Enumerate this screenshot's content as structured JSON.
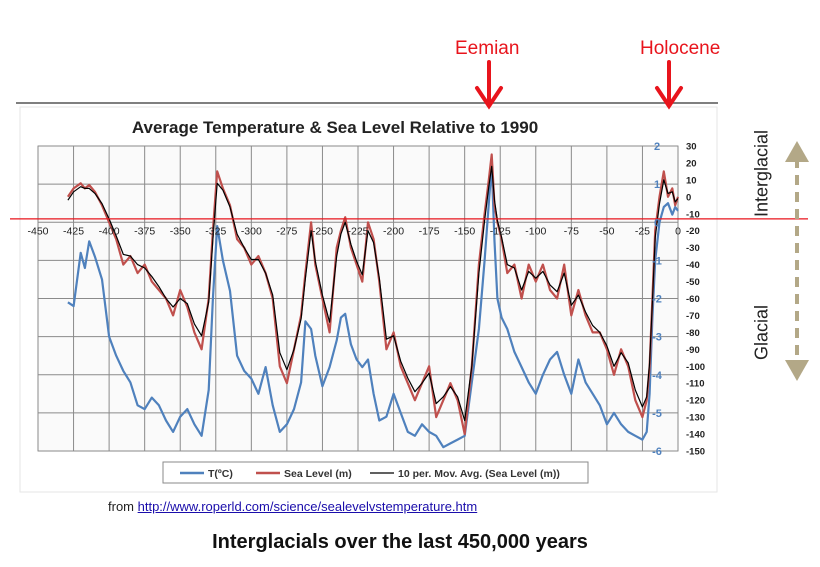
{
  "annotations": {
    "eemian": "Eemian",
    "holocene": "Holocene",
    "interglacial": "Interglacial",
    "glacial": "Glacial"
  },
  "source": {
    "prefix": "from",
    "url": "http://www.roperld.com/science/sealevelvstemperature.htm"
  },
  "caption": "Interglacials over the last 450,000 years",
  "colors": {
    "temperature": "#4f81bd",
    "sea_level": "#c0504d",
    "moving_avg": "#000000",
    "arrow": "#e8141c",
    "reference_line": "#e8141c",
    "side_arrow": "#b3a887"
  },
  "chart_data": {
    "type": "line",
    "title": "Average Temperature & Sea Level Relative to 1990",
    "x_ticks": [
      "-450",
      "-425",
      "-400",
      "-375",
      "-350",
      "-325",
      "-300",
      "-275",
      "-250",
      "-225",
      "-200",
      "-175",
      "-150",
      "-125",
      "-100",
      "-75",
      "-50",
      "-25",
      "0"
    ],
    "xlim": [
      -450,
      0
    ],
    "y_left_ticks": [
      "2",
      "1",
      "0",
      "-1",
      "-2",
      "-3",
      "-4",
      "-5",
      "-6"
    ],
    "y_left_lim": [
      -6,
      2
    ],
    "y_right_ticks": [
      "30",
      "20",
      "10",
      "0",
      "-10",
      "-20",
      "-30",
      "-40",
      "-50",
      "-60",
      "-70",
      "-80",
      "-90",
      "-100",
      "-110",
      "-120",
      "-130",
      "-140",
      "-150"
    ],
    "y_right_lim": [
      -150,
      30
    ],
    "grid": true,
    "legend_position": "bottom",
    "series": [
      {
        "name": "T(ºC)",
        "axis": "left",
        "x": [
          -429,
          -425,
          -420,
          -417,
          -414,
          -410,
          -405,
          -400,
          -395,
          -390,
          -385,
          -380,
          -375,
          -370,
          -365,
          -360,
          -355,
          -350,
          -345,
          -340,
          -335,
          -330,
          -327,
          -324,
          -320,
          -315,
          -310,
          -305,
          -300,
          -295,
          -290,
          -285,
          -280,
          -275,
          -270,
          -265,
          -262,
          -258,
          -255,
          -250,
          -245,
          -240,
          -237,
          -234,
          -230,
          -226,
          -222,
          -218,
          -214,
          -210,
          -205,
          -200,
          -195,
          -190,
          -185,
          -180,
          -175,
          -170,
          -165,
          -160,
          -155,
          -150,
          -145,
          -140,
          -136,
          -133,
          -131,
          -129,
          -127,
          -124,
          -120,
          -115,
          -110,
          -105,
          -100,
          -95,
          -90,
          -85,
          -80,
          -75,
          -70,
          -65,
          -60,
          -55,
          -50,
          -45,
          -40,
          -35,
          -30,
          -25,
          -22,
          -20,
          -18,
          -16,
          -13,
          -10,
          -7,
          -4,
          -2,
          0
        ],
        "y": [
          -2.1,
          -2.2,
          -0.8,
          -1.2,
          -0.5,
          -0.9,
          -1.5,
          -3.0,
          -3.5,
          -3.9,
          -4.2,
          -4.8,
          -4.9,
          -4.6,
          -4.8,
          -5.2,
          -5.5,
          -5.1,
          -4.9,
          -5.3,
          -5.6,
          -4.4,
          -2.0,
          -0.1,
          -1.0,
          -1.8,
          -3.5,
          -3.9,
          -4.1,
          -4.5,
          -3.8,
          -4.8,
          -5.5,
          -5.3,
          -4.9,
          -4.2,
          -2.6,
          -2.8,
          -3.5,
          -4.3,
          -3.8,
          -3.1,
          -2.5,
          -2.4,
          -3.2,
          -3.6,
          -3.8,
          -3.6,
          -4.5,
          -5.2,
          -5.1,
          -4.5,
          -5.0,
          -5.5,
          -5.6,
          -5.3,
          -5.5,
          -5.6,
          -5.9,
          -5.8,
          -5.7,
          -5.6,
          -4.2,
          -2.8,
          -1.0,
          0.5,
          1.5,
          -0.5,
          -2.0,
          -2.5,
          -2.8,
          -3.4,
          -3.8,
          -4.2,
          -4.5,
          -4.0,
          -3.6,
          -3.4,
          -4.0,
          -4.5,
          -3.6,
          -4.2,
          -4.5,
          -4.8,
          -5.3,
          -5.0,
          -5.3,
          -5.5,
          -5.6,
          -5.7,
          -5.5,
          -4.5,
          -2.5,
          -1.0,
          0.0,
          0.4,
          0.5,
          0.2,
          0.4,
          0.3
        ]
      },
      {
        "name": "Sea Level (m)",
        "axis": "right",
        "x": [
          -429,
          -425,
          -420,
          -417,
          -414,
          -410,
          -405,
          -400,
          -395,
          -390,
          -385,
          -380,
          -375,
          -370,
          -365,
          -360,
          -355,
          -350,
          -345,
          -340,
          -335,
          -330,
          -327,
          -324,
          -320,
          -315,
          -310,
          -305,
          -300,
          -295,
          -290,
          -285,
          -280,
          -275,
          -270,
          -265,
          -262,
          -258,
          -255,
          -250,
          -245,
          -240,
          -237,
          -234,
          -230,
          -226,
          -222,
          -218,
          -214,
          -210,
          -205,
          -200,
          -195,
          -190,
          -185,
          -180,
          -175,
          -170,
          -165,
          -160,
          -155,
          -150,
          -145,
          -140,
          -136,
          -133,
          -131,
          -129,
          -127,
          -124,
          -120,
          -115,
          -110,
          -105,
          -100,
          -95,
          -90,
          -85,
          -80,
          -75,
          -70,
          -65,
          -60,
          -55,
          -50,
          -45,
          -40,
          -35,
          -30,
          -25,
          -22,
          -20,
          -18,
          -16,
          -13,
          -10,
          -7,
          -4,
          -2,
          0
        ],
        "y": [
          0,
          5,
          8,
          5,
          7,
          3,
          -5,
          -15,
          -25,
          -40,
          -35,
          -45,
          -40,
          -50,
          -55,
          -60,
          -70,
          -55,
          -65,
          -80,
          -90,
          -60,
          -20,
          15,
          5,
          -5,
          -25,
          -30,
          -40,
          -35,
          -45,
          -60,
          -100,
          -110,
          -90,
          -70,
          -45,
          -15,
          -40,
          -60,
          -80,
          -30,
          -20,
          -12,
          -30,
          -40,
          -50,
          -15,
          -25,
          -50,
          -90,
          -80,
          -100,
          -110,
          -120,
          -110,
          -100,
          -130,
          -120,
          -110,
          -120,
          -140,
          -100,
          -40,
          -10,
          10,
          25,
          -5,
          -15,
          -25,
          -45,
          -40,
          -60,
          -40,
          -50,
          -40,
          -55,
          -60,
          -40,
          -70,
          -55,
          -70,
          -80,
          -80,
          -90,
          -105,
          -90,
          -100,
          -120,
          -130,
          -120,
          -100,
          -60,
          -20,
          0,
          15,
          0,
          5,
          -5,
          0
        ]
      },
      {
        "name": "10 per. Mov. Avg. (Sea Level (m))",
        "axis": "right",
        "x": [
          -429,
          -425,
          -420,
          -417,
          -414,
          -410,
          -405,
          -400,
          -395,
          -390,
          -385,
          -380,
          -375,
          -370,
          -365,
          -360,
          -355,
          -350,
          -345,
          -340,
          -335,
          -330,
          -327,
          -324,
          -320,
          -315,
          -310,
          -305,
          -300,
          -295,
          -290,
          -285,
          -280,
          -275,
          -270,
          -265,
          -262,
          -258,
          -255,
          -250,
          -245,
          -240,
          -237,
          -234,
          -230,
          -226,
          -222,
          -218,
          -214,
          -210,
          -205,
          -200,
          -195,
          -190,
          -185,
          -180,
          -175,
          -170,
          -165,
          -160,
          -155,
          -150,
          -145,
          -140,
          -136,
          -133,
          -131,
          -129,
          -127,
          -124,
          -120,
          -115,
          -110,
          -105,
          -100,
          -95,
          -90,
          -85,
          -80,
          -75,
          -70,
          -65,
          -60,
          -55,
          -50,
          -45,
          -40,
          -35,
          -30,
          -25,
          -22,
          -20,
          -18,
          -16,
          -13,
          -10,
          -7,
          -4,
          -2,
          0
        ],
        "y": [
          -2,
          3,
          6,
          5,
          5,
          2,
          -4,
          -13,
          -23,
          -34,
          -35,
          -40,
          -42,
          -47,
          -53,
          -60,
          -65,
          -60,
          -63,
          -75,
          -82,
          -62,
          -25,
          8,
          4,
          -6,
          -22,
          -30,
          -37,
          -37,
          -45,
          -58,
          -92,
          -102,
          -90,
          -72,
          -48,
          -20,
          -38,
          -58,
          -74,
          -35,
          -22,
          -15,
          -28,
          -38,
          -46,
          -20,
          -27,
          -48,
          -84,
          -82,
          -97,
          -107,
          -115,
          -110,
          -104,
          -122,
          -118,
          -112,
          -118,
          -132,
          -100,
          -45,
          -14,
          6,
          18,
          -2,
          -14,
          -24,
          -40,
          -42,
          -55,
          -44,
          -48,
          -44,
          -52,
          -56,
          -45,
          -64,
          -58,
          -68,
          -76,
          -80,
          -88,
          -100,
          -92,
          -98,
          -114,
          -124,
          -118,
          -98,
          -62,
          -24,
          -4,
          10,
          2,
          3,
          -3,
          -1
        ]
      }
    ]
  }
}
